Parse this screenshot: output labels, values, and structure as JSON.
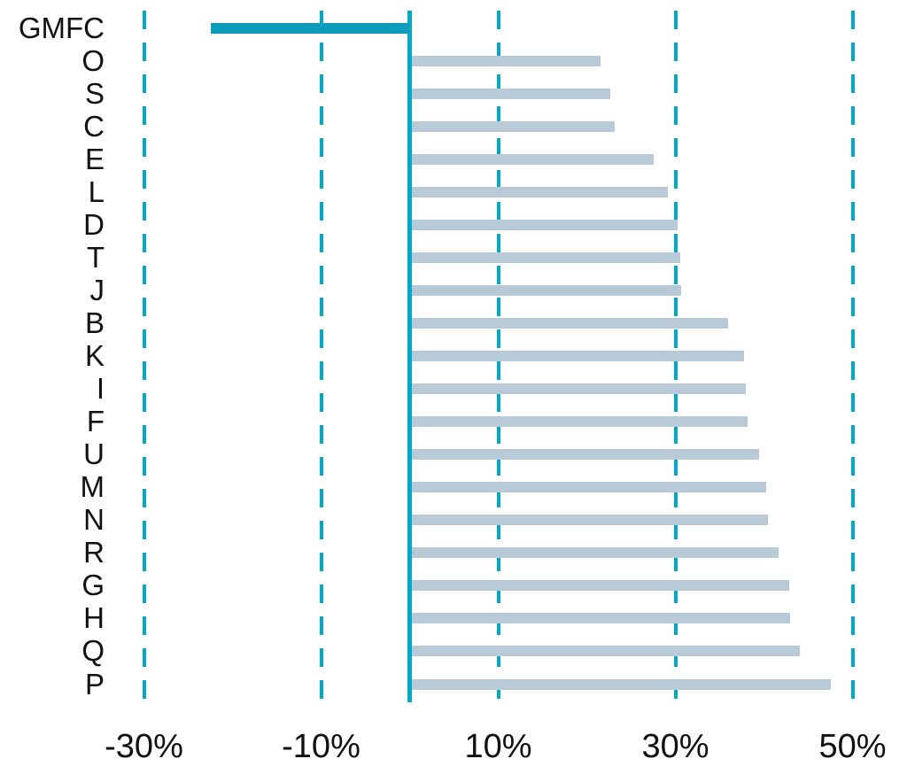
{
  "chart_data": {
    "type": "bar",
    "orientation": "horizontal",
    "title": "",
    "xlabel": "",
    "ylabel": "",
    "categories": [
      "GMFC",
      "O",
      "S",
      "C",
      "E",
      "L",
      "D",
      "T",
      "J",
      "B",
      "K",
      "I",
      "F",
      "U",
      "M",
      "N",
      "R",
      "G",
      "H",
      "Q",
      "P"
    ],
    "values": [
      -22.5,
      21.3,
      22.4,
      22.9,
      27.3,
      28.9,
      30.0,
      30.3,
      30.4,
      35.7,
      37.5,
      37.7,
      37.9,
      39.2,
      40.0,
      40.2,
      41.4,
      42.6,
      42.7,
      43.8,
      47.3
    ],
    "value_unit": "%",
    "highlight_category": "GMFC",
    "x_axis": {
      "ticks": [
        -30,
        -10,
        10,
        30,
        50
      ],
      "tick_labels": [
        "-30%",
        "-10%",
        "10%",
        "30%",
        "50%"
      ],
      "range": [
        -33,
        53
      ],
      "gridlines": "dashed-vertical",
      "zero_line": "solid-vertical"
    },
    "legend": "none",
    "colors": {
      "highlight_bar": "#0d9cb9",
      "default_bar": "#b8c9d7",
      "gridline": "#00a9c7",
      "label_text": "#111111",
      "background": "#ffffff"
    }
  }
}
